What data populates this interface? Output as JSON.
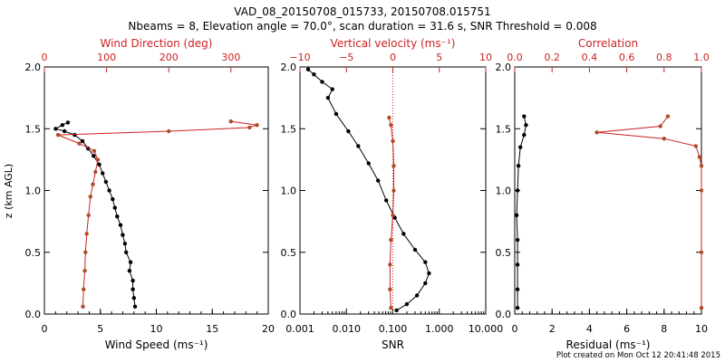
{
  "title_line1": "VAD_08_20150708_015733, 20150708.015751",
  "title_line2": "Nbeams = 8, Elevation angle = 70.0°, scan duration = 31.6 s, SNR Threshold = 0.008",
  "footer": "Plot created on Mon Oct 12 20:41:48 2015",
  "colors": {
    "black": "#000000",
    "red": "#cc2222",
    "dot_red": "#b04a28"
  },
  "y_axis": {
    "label": "z (km AGL)",
    "range": [
      0,
      2.0
    ],
    "ticks": [
      "0.0",
      "0.5",
      "1.0",
      "1.5",
      "2.0"
    ],
    "tick_values": [
      0,
      0.5,
      1.0,
      1.5,
      2.0
    ]
  },
  "chart_data": [
    {
      "type": "line",
      "bottom_label": "Wind Speed (ms⁻¹)",
      "top_label": "Wind Direction (deg)",
      "bottom_range": [
        0,
        20
      ],
      "bottom_ticks": [
        "0",
        "5",
        "10",
        "15",
        "20"
      ],
      "bottom_tick_values": [
        0,
        5,
        10,
        15,
        20
      ],
      "top_range": [
        0,
        360
      ],
      "top_ticks": [
        "0",
        "100",
        "200",
        "300"
      ],
      "top_tick_values": [
        0,
        100,
        200,
        300
      ],
      "series": [
        {
          "name": "Wind Speed",
          "axis": "bottom",
          "color": "black",
          "points": [
            [
              8.1,
              0.06
            ],
            [
              8.0,
              0.13
            ],
            [
              7.9,
              0.2
            ],
            [
              7.9,
              0.27
            ],
            [
              7.6,
              0.35
            ],
            [
              7.7,
              0.42
            ],
            [
              7.3,
              0.5
            ],
            [
              7.2,
              0.57
            ],
            [
              7.0,
              0.64
            ],
            [
              6.8,
              0.72
            ],
            [
              6.5,
              0.79
            ],
            [
              6.3,
              0.86
            ],
            [
              6.1,
              0.93
            ],
            [
              5.8,
              1.0
            ],
            [
              5.5,
              1.07
            ],
            [
              5.2,
              1.14
            ],
            [
              4.9,
              1.21
            ],
            [
              4.4,
              1.28
            ],
            [
              3.9,
              1.34
            ],
            [
              3.4,
              1.4
            ],
            [
              2.7,
              1.45
            ],
            [
              1.8,
              1.48
            ],
            [
              1.0,
              1.5
            ],
            [
              1.6,
              1.53
            ],
            [
              2.1,
              1.55
            ]
          ]
        },
        {
          "name": "Wind Direction",
          "axis": "top",
          "color": "dot_red",
          "points": [
            [
              62,
              0.06
            ],
            [
              63,
              0.2
            ],
            [
              65,
              0.35
            ],
            [
              66,
              0.5
            ],
            [
              68,
              0.65
            ],
            [
              71,
              0.8
            ],
            [
              74,
              0.95
            ],
            [
              78,
              1.05
            ],
            [
              82,
              1.15
            ],
            [
              86,
              1.25
            ],
            [
              80,
              1.32
            ],
            [
              56,
              1.38
            ],
            [
              22,
              1.45
            ],
            [
              200,
              1.48
            ],
            [
              330,
              1.51
            ],
            [
              342,
              1.53
            ],
            [
              300,
              1.56
            ]
          ]
        }
      ]
    },
    {
      "type": "line",
      "bottom_label": "SNR",
      "top_label": "Vertical velocity (ms⁻¹)",
      "bottom_scale": "log",
      "bottom_range": [
        0.001,
        10
      ],
      "bottom_ticks": [
        "0.001",
        "0.010",
        "0.100",
        "1.000",
        "10.000"
      ],
      "bottom_tick_values": [
        0.001,
        0.01,
        0.1,
        1,
        10
      ],
      "top_range": [
        -10,
        10
      ],
      "top_ticks": [
        "−10",
        "−5",
        "0",
        "5",
        "10"
      ],
      "top_tick_values": [
        -10,
        -5,
        0,
        5,
        10
      ],
      "reference_line": 0,
      "series": [
        {
          "name": "SNR",
          "axis": "bottom",
          "color": "black",
          "points": [
            [
              0.12,
              0.03
            ],
            [
              0.2,
              0.08
            ],
            [
              0.33,
              0.15
            ],
            [
              0.5,
              0.25
            ],
            [
              0.6,
              0.33
            ],
            [
              0.5,
              0.42
            ],
            [
              0.3,
              0.52
            ],
            [
              0.17,
              0.65
            ],
            [
              0.11,
              0.78
            ],
            [
              0.072,
              0.92
            ],
            [
              0.048,
              1.08
            ],
            [
              0.03,
              1.22
            ],
            [
              0.018,
              1.36
            ],
            [
              0.011,
              1.48
            ],
            [
              0.006,
              1.62
            ],
            [
              0.004,
              1.75
            ],
            [
              0.005,
              1.82
            ],
            [
              0.003,
              1.88
            ],
            [
              0.002,
              1.94
            ],
            [
              0.0015,
              1.98
            ]
          ]
        },
        {
          "name": "Vertical velocity",
          "axis": "top",
          "color": "dot_red",
          "points": [
            [
              -0.2,
              0.05
            ],
            [
              -0.3,
              0.2
            ],
            [
              -0.3,
              0.4
            ],
            [
              -0.2,
              0.6
            ],
            [
              0.0,
              0.8
            ],
            [
              0.1,
              1.0
            ],
            [
              0.1,
              1.2
            ],
            [
              0.0,
              1.4
            ],
            [
              -0.2,
              1.53
            ],
            [
              -0.4,
              1.59
            ]
          ]
        }
      ]
    },
    {
      "type": "line",
      "bottom_label": "Residual (ms⁻¹)",
      "top_label": "Correlation",
      "bottom_range": [
        0,
        10
      ],
      "bottom_ticks": [
        "0",
        "2",
        "4",
        "6",
        "8",
        "10"
      ],
      "bottom_tick_values": [
        0,
        2,
        4,
        6,
        8,
        10
      ],
      "top_range": [
        0,
        1.0
      ],
      "top_ticks": [
        "0.0",
        "0.2",
        "0.4",
        "0.6",
        "0.8",
        "1.0"
      ],
      "top_tick_values": [
        0,
        0.2,
        0.4,
        0.6,
        0.8,
        1.0
      ],
      "series": [
        {
          "name": "Residual",
          "axis": "bottom",
          "color": "black",
          "points": [
            [
              0.15,
              0.05
            ],
            [
              0.15,
              0.2
            ],
            [
              0.15,
              0.4
            ],
            [
              0.15,
              0.6
            ],
            [
              0.1,
              0.8
            ],
            [
              0.15,
              1.0
            ],
            [
              0.2,
              1.2
            ],
            [
              0.3,
              1.35
            ],
            [
              0.5,
              1.45
            ],
            [
              0.6,
              1.53
            ],
            [
              0.5,
              1.6
            ]
          ]
        },
        {
          "name": "Correlation",
          "axis": "top",
          "color": "dot_red",
          "points": [
            [
              1.0,
              0.05
            ],
            [
              1.0,
              0.5
            ],
            [
              1.0,
              1.0
            ],
            [
              1.0,
              1.2
            ],
            [
              0.99,
              1.27
            ],
            [
              0.97,
              1.36
            ],
            [
              0.8,
              1.42
            ],
            [
              0.44,
              1.47
            ],
            [
              0.78,
              1.52
            ],
            [
              0.82,
              1.6
            ]
          ]
        }
      ]
    }
  ]
}
